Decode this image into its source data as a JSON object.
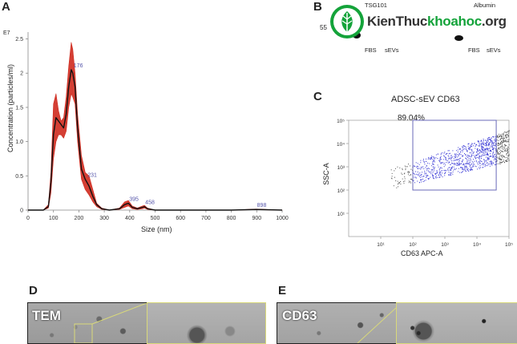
{
  "panels": {
    "A": {
      "letter": "A",
      "exponent": "E7",
      "ylabel": "Concentration (particles/ml)",
      "xlabel": "Size (nm)",
      "peak_labels": [
        "176",
        "231",
        "395",
        "458",
        "898"
      ],
      "yticks": [
        "2.5",
        "2",
        "1.5",
        "1.0",
        "0.5",
        "0"
      ],
      "xticks": [
        "0",
        "100",
        "200",
        "300",
        "400",
        "500",
        "600",
        "700",
        "800",
        "900",
        "1000"
      ]
    },
    "B": {
      "letter": "B",
      "marker_left": "TSG101",
      "marker_right": "Albumin",
      "mw": "55",
      "lanes_left": [
        "FBS",
        "sEVs"
      ],
      "lanes_right": [
        "FBS",
        "sEVs"
      ]
    },
    "C": {
      "letter": "C",
      "title": "ADSC-sEV CD63",
      "gate_percent": "89.04%",
      "ylabel": "SSC-A",
      "xlabel": "CD63 APC-A",
      "yticks": [
        "10⁵",
        "10⁴",
        "10³",
        "10²",
        "10¹"
      ],
      "xticks": [
        "10¹",
        "10²",
        "10³",
        "10⁴",
        "10⁵"
      ]
    },
    "D": {
      "letter": "D",
      "label": "TEM"
    },
    "E": {
      "letter": "E",
      "label": "CD63"
    }
  },
  "watermark": {
    "text_dark": "KienThuc",
    "text_green": "khoahoc",
    "suffix": ".org"
  },
  "colors": {
    "band": "#cf2a1e",
    "line": "#111111",
    "gate": "#6a6ab8",
    "dots_gated": "#3a3ad6",
    "dots_ungated": "#555555",
    "logo_green": "#14a33a"
  },
  "chart_data": [
    {
      "type": "line",
      "title": "",
      "xlabel": "Size (nm)",
      "ylabel": "Concentration (particles/ml)",
      "xlim": [
        0,
        1000
      ],
      "ylim": [
        0,
        2.6
      ],
      "y_unit_exponent": "E7",
      "x": [
        0,
        60,
        80,
        90,
        100,
        110,
        120,
        130,
        140,
        150,
        160,
        170,
        176,
        185,
        195,
        210,
        225,
        240,
        255,
        270,
        290,
        320,
        360,
        380,
        395,
        410,
        430,
        450,
        458,
        470,
        500,
        600,
        700,
        800,
        898,
        1000
      ],
      "series": [
        {
          "name": "",
          "values": [
            0,
            0,
            0.05,
            0.4,
            1.1,
            1.35,
            1.3,
            1.25,
            1.2,
            1.4,
            1.8,
            2.05,
            2.0,
            1.8,
            1.2,
            0.6,
            0.45,
            0.35,
            0.2,
            0.08,
            0.02,
            0,
            0.02,
            0.08,
            0.1,
            0.04,
            0.02,
            0.04,
            0.05,
            0.02,
            0,
            0,
            0,
            0,
            0.01,
            0
          ]
        },
        {
          "name": "",
          "values": [
            0,
            0,
            0.08,
            0.55,
            1.55,
            1.7,
            1.45,
            1.3,
            1.35,
            1.65,
            2.1,
            2.45,
            2.35,
            2.0,
            1.4,
            0.8,
            0.55,
            0.5,
            0.3,
            0.1,
            0.03,
            0,
            0.03,
            0.12,
            0.14,
            0.06,
            0.03,
            0.06,
            0.07,
            0.03,
            0,
            0,
            0,
            0,
            0.015,
            0
          ]
        },
        {
          "name": "",
          "values": [
            0,
            0,
            0.03,
            0.25,
            0.75,
            1.0,
            1.1,
            1.1,
            1.05,
            1.15,
            1.5,
            1.7,
            1.65,
            1.55,
            1.0,
            0.45,
            0.3,
            0.22,
            0.12,
            0.05,
            0.01,
            0,
            0.01,
            0.04,
            0.06,
            0.02,
            0.01,
            0.02,
            0.03,
            0.01,
            0,
            0,
            0,
            0,
            0.005,
            0
          ]
        }
      ]
    },
    {
      "type": "scatter",
      "title": "ADSC-sEV CD63",
      "xlabel": "CD63 APC-A",
      "ylabel": "SSC-A",
      "x_scale": "log",
      "y_scale": "log",
      "xlim": [
        1,
        100000
      ],
      "ylim": [
        1,
        100000
      ],
      "gate": {
        "x": [
          100,
          40000
        ],
        "y": [
          100,
          100000
        ],
        "percent": 89.04
      }
    }
  ]
}
